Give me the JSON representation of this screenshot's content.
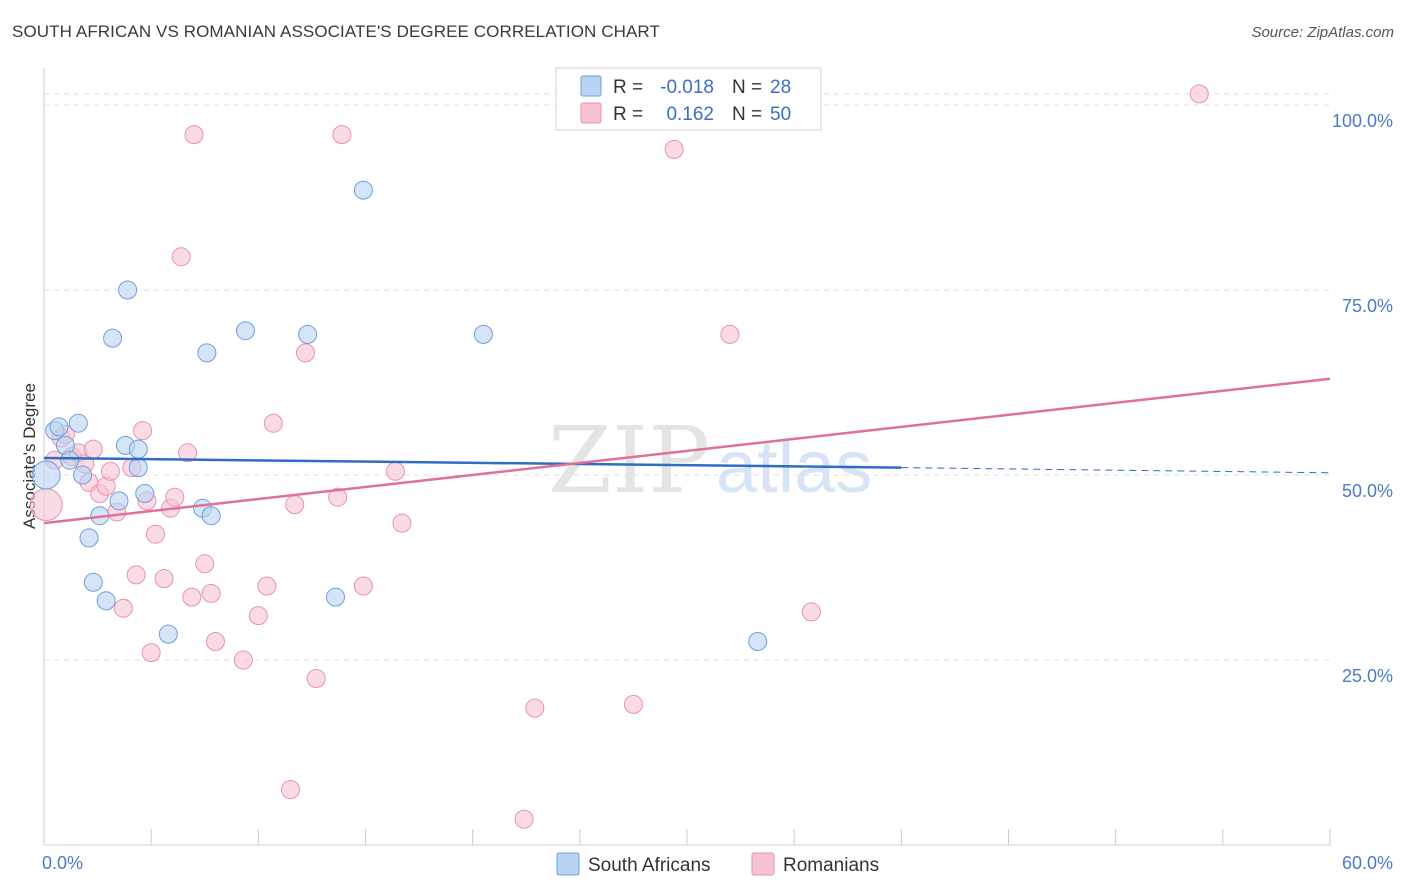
{
  "header": {
    "title": "SOUTH AFRICAN VS ROMANIAN ASSOCIATE'S DEGREE CORRELATION CHART",
    "source": "Source: ZipAtlas.com"
  },
  "watermark": {
    "zip": "ZIP",
    "atlas": "atlas"
  },
  "colors": {
    "blue_fill": "#b9d3f2",
    "blue_stroke": "#6f9fdc",
    "blue_line": "#2f6cc6",
    "pink_fill": "#f7c3d3",
    "pink_stroke": "#e992ae",
    "pink_line": "#e0709a",
    "tick_text": "#4a7bc8",
    "grid": "#dddddd"
  },
  "legend": {
    "rows": [
      {
        "r_label": "R = ",
        "r_value": "-0.018",
        "n_label": "N = ",
        "n_value": "28"
      },
      {
        "r_label": "R = ",
        "r_value": "0.162",
        "n_label": "N = ",
        "n_value": "50"
      }
    ]
  },
  "chart_data": {
    "type": "scatter",
    "title": "SOUTH AFRICAN VS ROMANIAN ASSOCIATE'S DEGREE CORRELATION CHART",
    "xlabel": "",
    "ylabel": "Associate's Degree",
    "xlim": [
      0,
      60
    ],
    "ylim": [
      0,
      105
    ],
    "x_tick_labels": [
      "0.0%",
      "60.0%"
    ],
    "y_ticks": [
      25,
      50,
      75,
      100
    ],
    "y_tick_labels": [
      "25.0%",
      "50.0%",
      "75.0%",
      "100.0%"
    ],
    "grid": true,
    "legend_position": "top-center",
    "series": [
      {
        "name": "South Africans",
        "color": "#b9d3f2",
        "r": -0.018,
        "n": 28,
        "trend": {
          "x0": 0,
          "y0": 52.3,
          "x1": 40,
          "y1": 51.0,
          "dash_to_x": 60,
          "dash_to_y": 50.3
        },
        "points": [
          [
            0.1,
            50.0,
            14
          ],
          [
            0.5,
            56.0,
            9
          ],
          [
            0.7,
            56.5,
            9
          ],
          [
            1.0,
            54.0,
            9
          ],
          [
            1.2,
            52.0,
            9
          ],
          [
            1.6,
            57.0,
            9
          ],
          [
            1.8,
            50.0,
            9
          ],
          [
            2.1,
            41.5,
            9
          ],
          [
            2.3,
            35.5,
            9
          ],
          [
            2.6,
            44.5,
            9
          ],
          [
            2.9,
            33.0,
            9
          ],
          [
            3.2,
            68.5,
            9
          ],
          [
            3.5,
            46.5,
            9
          ],
          [
            3.8,
            54.0,
            9
          ],
          [
            3.9,
            75.0,
            9
          ],
          [
            4.4,
            53.5,
            9
          ],
          [
            4.4,
            51.0,
            9
          ],
          [
            4.7,
            47.5,
            9
          ],
          [
            5.8,
            28.5,
            9
          ],
          [
            7.4,
            45.5,
            9
          ],
          [
            7.6,
            66.5,
            9
          ],
          [
            7.8,
            44.5,
            9
          ],
          [
            9.4,
            69.5,
            9
          ],
          [
            12.3,
            69.0,
            9
          ],
          [
            13.6,
            33.5,
            9
          ],
          [
            14.9,
            88.5,
            9
          ],
          [
            20.5,
            69.0,
            9
          ],
          [
            33.3,
            27.5,
            9
          ]
        ]
      },
      {
        "name": "Romanians",
        "color": "#f7c3d3",
        "r": 0.162,
        "n": 50,
        "trend": {
          "x0": 0,
          "y0": 43.5,
          "x1": 60,
          "y1": 63.0
        },
        "points": [
          [
            0.1,
            46.0,
            16
          ],
          [
            0.5,
            52.0,
            9
          ],
          [
            0.8,
            55.0,
            9
          ],
          [
            1.0,
            55.5,
            9
          ],
          [
            1.3,
            52.5,
            9
          ],
          [
            1.6,
            53.0,
            9
          ],
          [
            1.9,
            51.5,
            9
          ],
          [
            2.1,
            49.0,
            9
          ],
          [
            2.3,
            53.5,
            9
          ],
          [
            2.6,
            47.5,
            9
          ],
          [
            2.9,
            48.5,
            9
          ],
          [
            3.1,
            50.5,
            9
          ],
          [
            3.4,
            45.0,
            9
          ],
          [
            3.7,
            32.0,
            9
          ],
          [
            4.1,
            51.0,
            9
          ],
          [
            4.3,
            36.5,
            9
          ],
          [
            4.6,
            56.0,
            9
          ],
          [
            4.8,
            46.5,
            9
          ],
          [
            5.0,
            26.0,
            9
          ],
          [
            5.2,
            42.0,
            9
          ],
          [
            5.6,
            36.0,
            9
          ],
          [
            5.9,
            45.5,
            9
          ],
          [
            6.1,
            47.0,
            9
          ],
          [
            6.4,
            79.5,
            9
          ],
          [
            6.7,
            53.0,
            9
          ],
          [
            6.9,
            33.5,
            9
          ],
          [
            7.0,
            96.0,
            9
          ],
          [
            7.5,
            38.0,
            9
          ],
          [
            7.8,
            34.0,
            9
          ],
          [
            8.0,
            27.5,
            9
          ],
          [
            9.3,
            25.0,
            9
          ],
          [
            10.0,
            31.0,
            9
          ],
          [
            10.4,
            35.0,
            9
          ],
          [
            10.7,
            57.0,
            9
          ],
          [
            11.5,
            7.5,
            9
          ],
          [
            11.7,
            46.0,
            9
          ],
          [
            12.2,
            66.5,
            9
          ],
          [
            12.7,
            22.5,
            9
          ],
          [
            13.7,
            47.0,
            9
          ],
          [
            13.9,
            96.0,
            9
          ],
          [
            14.9,
            35.0,
            9
          ],
          [
            16.4,
            50.5,
            9
          ],
          [
            16.7,
            43.5,
            9
          ],
          [
            22.9,
            18.5,
            9
          ],
          [
            27.5,
            19.0,
            9
          ],
          [
            29.4,
            94.0,
            9
          ],
          [
            32.0,
            69.0,
            9
          ],
          [
            35.8,
            31.5,
            9
          ],
          [
            22.4,
            3.5,
            9
          ],
          [
            53.9,
            101.5,
            9
          ]
        ]
      }
    ]
  }
}
